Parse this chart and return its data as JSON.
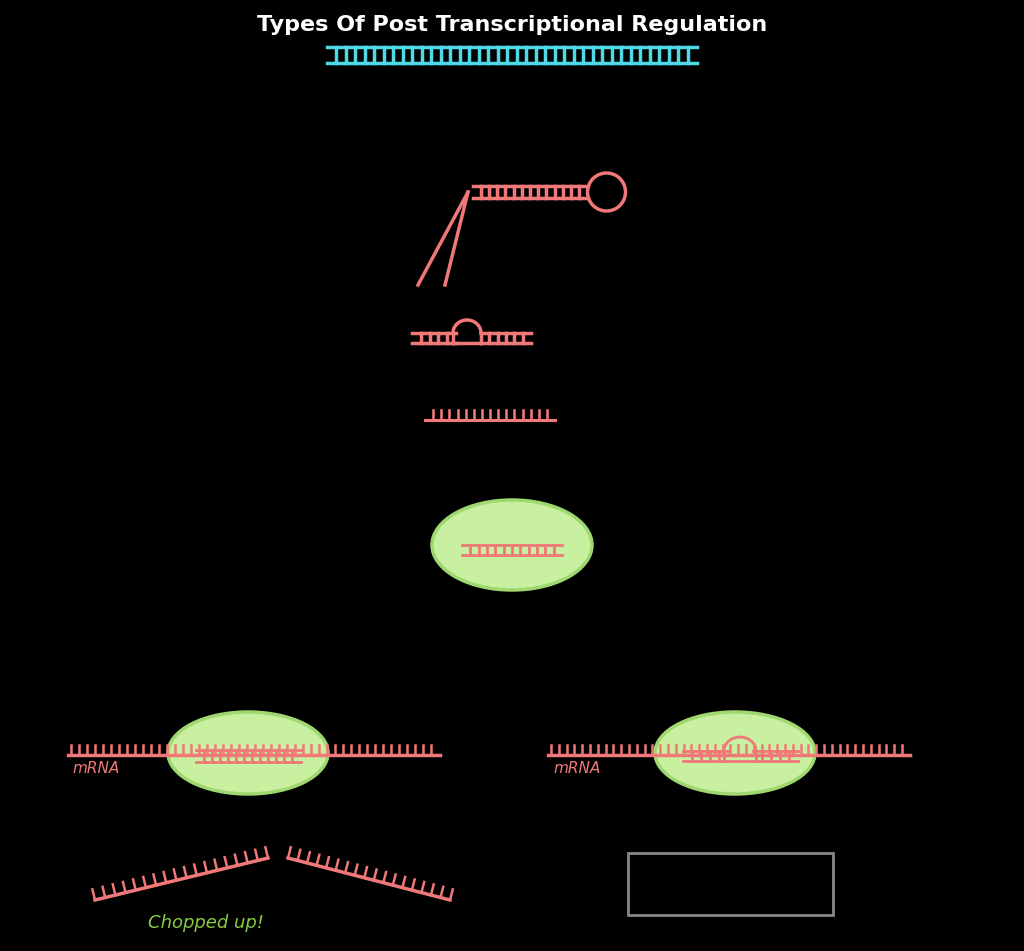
{
  "bg_color": "#000000",
  "dna_color": "#4DD9E8",
  "rna_color": "#F07878",
  "green_fill": "#C8F0A0",
  "green_edge": "#A0D870",
  "text_color": "#F07878",
  "title": "Types Of Post Transcriptional Regulation",
  "chopped_text": "Chopped up!",
  "mrna_text": "mRNA",
  "title_color": "#ffffff",
  "rect_edge": "#888888"
}
